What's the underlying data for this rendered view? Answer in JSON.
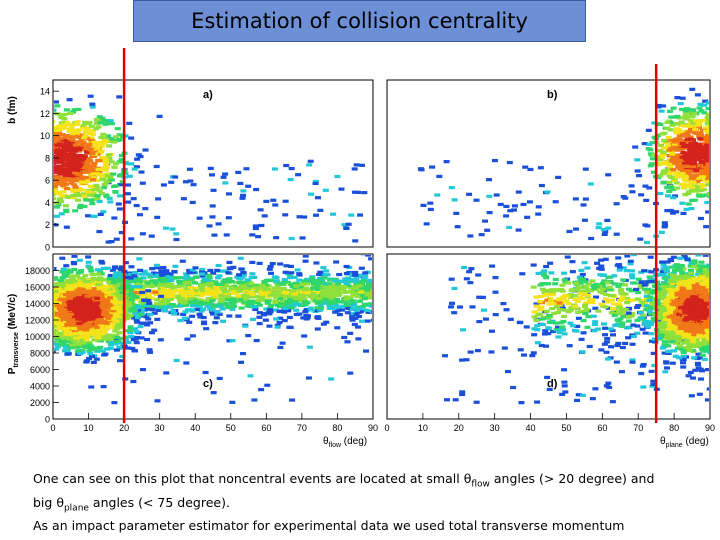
{
  "slide_title": "Estimation of collision centrality",
  "caption": {
    "line1_pre": "One can see on this plot that noncentral events are located at small θ",
    "line1_sub": "flow",
    "line1_post": " angles (> 20 degree) and",
    "line2_pre": "big θ",
    "line2_sub": "plane",
    "line2_post": " angles (< 75 degree).",
    "line3": "As an impact parameter estimator for experimental data we used total transverse momentum"
  },
  "colors": {
    "title_bg": "#6d8fd6",
    "cut_line": "#e00000",
    "dense": "#d4221c",
    "mid": "#f5e31a",
    "sparse": "#1a4fd9"
  },
  "chart_data": [
    {
      "panel": "a)",
      "type": "heatmap",
      "xlabel": "",
      "ylabel": "b (fm)",
      "xlim": [
        0,
        90
      ],
      "ylim": [
        0,
        15
      ],
      "yticks": [
        "0",
        "2",
        "4",
        "6",
        "8",
        "10",
        "12",
        "14"
      ],
      "xticks": [],
      "blob": {
        "x": 3,
        "y": 8,
        "spread_x": 8,
        "spread_y": 2.2,
        "count": 900
      },
      "scatter": {
        "x_range": [
          12,
          90
        ],
        "y_range": [
          0.5,
          8
        ],
        "count": 110
      },
      "cut_x": 20
    },
    {
      "panel": "b)",
      "type": "heatmap",
      "xlabel": "",
      "ylabel": "",
      "xlim": [
        0,
        90
      ],
      "ylim": [
        0,
        15
      ],
      "yticks": [],
      "xticks": [],
      "blob": {
        "x": 85,
        "y": 8.5,
        "spread_x": 6,
        "spread_y": 2.0,
        "count": 800
      },
      "scatter": {
        "x_range": [
          8,
          80
        ],
        "y_range": [
          0.5,
          8
        ],
        "count": 90
      },
      "cut_x": 75
    },
    {
      "panel": "c)",
      "type": "heatmap",
      "xlabel": "θ",
      "xlabel_sub": "flow",
      "xlabel_unit": " (deg)",
      "ylabel": "P",
      "ylabel_sub": "transverse",
      "ylabel_unit": " (MeV/c)",
      "xlim": [
        0,
        90
      ],
      "ylim": [
        0,
        20000
      ],
      "yticks": [
        "0",
        "2000",
        "4000",
        "6000",
        "8000",
        "10000",
        "12000",
        "14000",
        "16000",
        "18000"
      ],
      "xticks": [
        "0",
        "10",
        "20",
        "30",
        "40",
        "50",
        "60",
        "70",
        "80",
        "90"
      ],
      "blob": {
        "x": 8,
        "y": 13500,
        "spread_x": 7,
        "spread_y": 2300,
        "count": 1600
      },
      "band": {
        "x_range": [
          15,
          90
        ],
        "y_center": 15500,
        "y_spread": 1500,
        "count": 1300
      },
      "scatter": {
        "x_range": [
          15,
          90
        ],
        "y_range": [
          2000,
          14000
        ],
        "count": 60
      },
      "cut_x": 20
    },
    {
      "panel": "d)",
      "type": "heatmap",
      "xlabel": "θ",
      "xlabel_sub": "plane",
      "xlabel_unit": " (deg)",
      "ylabel": "",
      "xlim": [
        0,
        90
      ],
      "ylim": [
        0,
        20000
      ],
      "yticks": [],
      "xticks": [
        "0",
        "10",
        "20",
        "30",
        "40",
        "50",
        "60",
        "70",
        "80",
        "90"
      ],
      "blob": {
        "x": 85,
        "y": 13500,
        "spread_x": 6,
        "spread_y": 2600,
        "count": 1500
      },
      "band": {
        "x_range": [
          40,
          90
        ],
        "y_center": 14500,
        "y_spread": 2500,
        "count": 500
      },
      "scatter": {
        "x_range": [
          15,
          90
        ],
        "y_range": [
          2000,
          19000
        ],
        "count": 180
      },
      "cut_x": 75
    }
  ]
}
